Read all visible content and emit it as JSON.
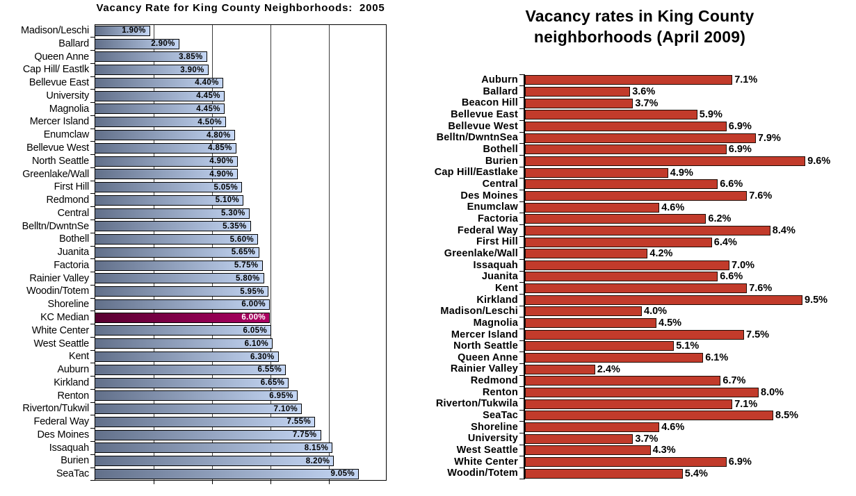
{
  "page": {
    "background": "#ffffff"
  },
  "chart_data": [
    {
      "type": "bar",
      "orientation": "horizontal",
      "title": "Vacancy Rate for King County Neighborhoods:  2005",
      "xlabel": "",
      "ylabel": "",
      "xlim": [
        0,
        10
      ],
      "grid": true,
      "gridlines_pct": [
        2,
        4,
        6,
        8
      ],
      "legend": "none",
      "highlight_category": "KC Median",
      "categories": [
        "Madison/Leschi",
        "Ballard",
        "Queen Anne",
        "Cap Hill/ Eastlk",
        "Bellevue East",
        "University",
        "Magnolia",
        "Mercer Island",
        "Enumclaw",
        "Bellevue West",
        "North Seattle",
        "Greenlake/Wall",
        "First Hill",
        "Redmond",
        "Central",
        "Belltn/DwntnSe",
        "Bothell",
        "Juanita",
        "Factoria",
        "Rainier Valley",
        "Woodin/Totem",
        "Shoreline",
        "KC Median",
        "White Center",
        "West Seattle",
        "Kent",
        "Auburn",
        "Kirkland",
        "Renton",
        "Riverton/Tukwil",
        "Federal Way",
        "Des Moines",
        "Issaquah",
        "Burien",
        "SeaTac"
      ],
      "values": [
        1.9,
        2.9,
        3.85,
        3.9,
        4.4,
        4.45,
        4.45,
        4.5,
        4.8,
        4.85,
        4.9,
        4.9,
        5.05,
        5.1,
        5.3,
        5.35,
        5.6,
        5.65,
        5.75,
        5.8,
        5.95,
        6.0,
        6.0,
        6.05,
        6.1,
        6.3,
        6.55,
        6.65,
        6.95,
        7.1,
        7.55,
        7.75,
        8.15,
        8.2,
        9.05
      ],
      "value_labels": [
        "1.90%",
        "2.90%",
        "3.85%",
        "3.90%",
        "4.40%",
        "4.45%",
        "4.45%",
        "4.50%",
        "4.80%",
        "4.85%",
        "4.90%",
        "4.90%",
        "5.05%",
        "5.10%",
        "5.30%",
        "5.35%",
        "5.60%",
        "5.65%",
        "5.75%",
        "5.80%",
        "5.95%",
        "6.00%",
        "6.00%",
        "6.05%",
        "6.10%",
        "6.30%",
        "6.55%",
        "6.65%",
        "6.95%",
        "7.10%",
        "7.55%",
        "7.75%",
        "8.15%",
        "8.20%",
        "9.05%"
      ],
      "colors": {
        "bar_gradient_start": "#62708a",
        "bar_gradient_end": "#c5d7f5",
        "bar_border": "#000000",
        "highlight_gradient_start": "#570030",
        "highlight_gradient_end": "#ae0063",
        "highlight_value_text": "#ffffff",
        "value_text": "#000000",
        "gridline": "#3c3c3c",
        "plot_border": "#000000"
      }
    },
    {
      "type": "bar",
      "orientation": "horizontal",
      "title": "Vacancy rates in King County neighborhoods (April 2009)",
      "title_lines": [
        "Vacancy rates in King County",
        "neighborhoods (April 2009)"
      ],
      "xlabel": "",
      "ylabel": "",
      "xlim": [
        0,
        10
      ],
      "grid": false,
      "legend": "none",
      "categories": [
        "Auburn",
        "Ballard",
        "Beacon Hill",
        "Bellevue East",
        "Bellevue West",
        "Belltn/DwntnSea",
        "Bothell",
        "Burien",
        "Cap Hill/Eastlake",
        "Central",
        "Des Moines",
        "Enumclaw",
        "Factoria",
        "Federal Way",
        "First Hill",
        "Greenlake/Wall",
        "Issaquah",
        "Juanita",
        "Kent",
        "Kirkland",
        "Madison/Leschi",
        "Magnolia",
        "Mercer Island",
        "North Seattle",
        "Queen Anne",
        "Rainier Valley",
        "Redmond",
        "Renton",
        "Riverton/Tukwila",
        "SeaTac",
        "Shoreline",
        "University",
        "West Seattle",
        "White Center",
        "Woodin/Totem"
      ],
      "values": [
        7.1,
        3.6,
        3.7,
        5.9,
        6.9,
        7.9,
        6.9,
        9.6,
        4.9,
        6.6,
        7.6,
        4.6,
        6.2,
        8.4,
        6.4,
        4.2,
        7.0,
        6.6,
        7.6,
        9.5,
        4.0,
        4.5,
        7.5,
        5.1,
        6.1,
        2.4,
        6.7,
        8.0,
        7.1,
        8.5,
        4.6,
        3.7,
        4.3,
        6.9,
        5.4
      ],
      "value_labels": [
        "7.1%",
        "3.6%",
        "3.7%",
        "5.9%",
        "6.9%",
        "7.9%",
        "6.9%",
        "9.6%",
        "4.9%",
        "6.6%",
        "7.6%",
        "4.6%",
        "6.2%",
        "8.4%",
        "6.4%",
        "4.2%",
        "7.0%",
        "6.6%",
        "7.6%",
        "9.5%",
        "4.0%",
        "4.5%",
        "7.5%",
        "5.1%",
        "6.1%",
        "2.4%",
        "6.7%",
        "8.0%",
        "7.1%",
        "8.5%",
        "4.6%",
        "3.7%",
        "4.3%",
        "6.9%",
        "5.4%"
      ],
      "colors": {
        "bar_fill": "#c23b2b",
        "bar_border": "#1d0b04",
        "value_text": "#000000",
        "axis": "#000000"
      }
    }
  ]
}
